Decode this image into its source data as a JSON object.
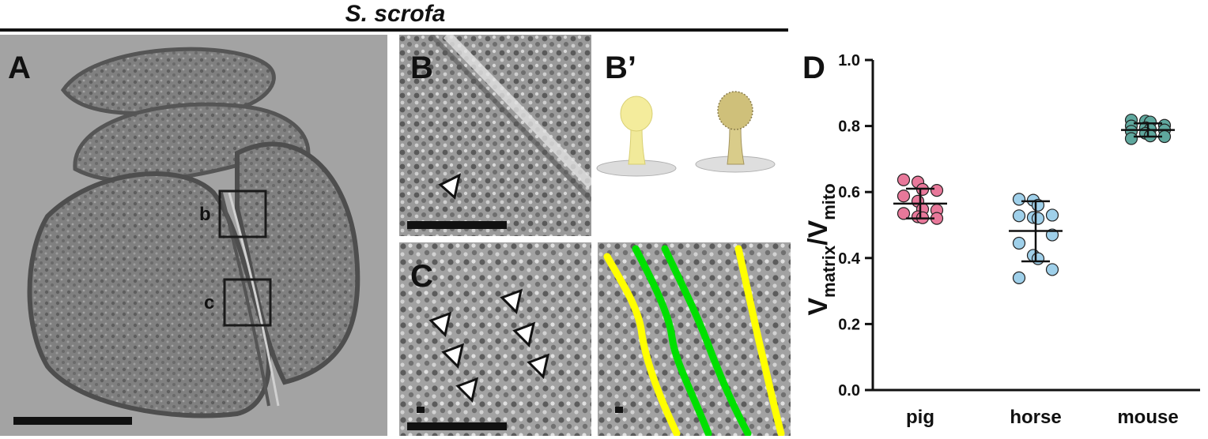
{
  "figure": {
    "species_title": "S. scrofa",
    "panel_labels": {
      "a": "A",
      "b": "B",
      "b_prime": "B’",
      "c": "C",
      "d": "D"
    },
    "inset_box_labels": {
      "b": "b",
      "c": "c"
    },
    "trace_colors": {
      "outer": "#ffff00",
      "inner": "#00e000"
    },
    "arrowhead_color": "#ffffff"
  },
  "chart_data": {
    "type": "scatter",
    "title": "",
    "xlabel": "",
    "ylabel_main": "V",
    "ylabel_sub1": "matrix",
    "ylabel_slash": "/V",
    "ylabel_sub2": "mito",
    "ylim": [
      0.0,
      1.0
    ],
    "yticks": [
      "0.0",
      "0.2",
      "0.4",
      "0.6",
      "0.8",
      "1.0"
    ],
    "ytick_values": [
      0.0,
      0.2,
      0.4,
      0.6,
      0.8,
      1.0
    ],
    "categories": [
      "pig",
      "horse",
      "mouse"
    ],
    "grid": false,
    "series": [
      {
        "category": "pig",
        "color": "#e8789a",
        "mean": 0.565,
        "sd_low": 0.52,
        "sd_high": 0.61,
        "values": [
          0.637,
          0.63,
          0.608,
          0.605,
          0.588,
          0.572,
          0.548,
          0.545,
          0.535,
          0.525,
          0.522,
          0.52
        ]
      },
      {
        "category": "horse",
        "color": "#9fd0ea",
        "mean": 0.482,
        "sd_low": 0.39,
        "sd_high": 0.572,
        "values": [
          0.578,
          0.575,
          0.56,
          0.53,
          0.528,
          0.523,
          0.52,
          0.47,
          0.445,
          0.408,
          0.398,
          0.365,
          0.34
        ]
      },
      {
        "category": "mouse",
        "color": "#5fa89e",
        "mean": 0.788,
        "sd_low": 0.768,
        "sd_high": 0.808,
        "values": [
          0.818,
          0.815,
          0.812,
          0.802,
          0.8,
          0.795,
          0.79,
          0.788,
          0.784,
          0.778,
          0.77,
          0.768,
          0.762
        ]
      }
    ]
  }
}
